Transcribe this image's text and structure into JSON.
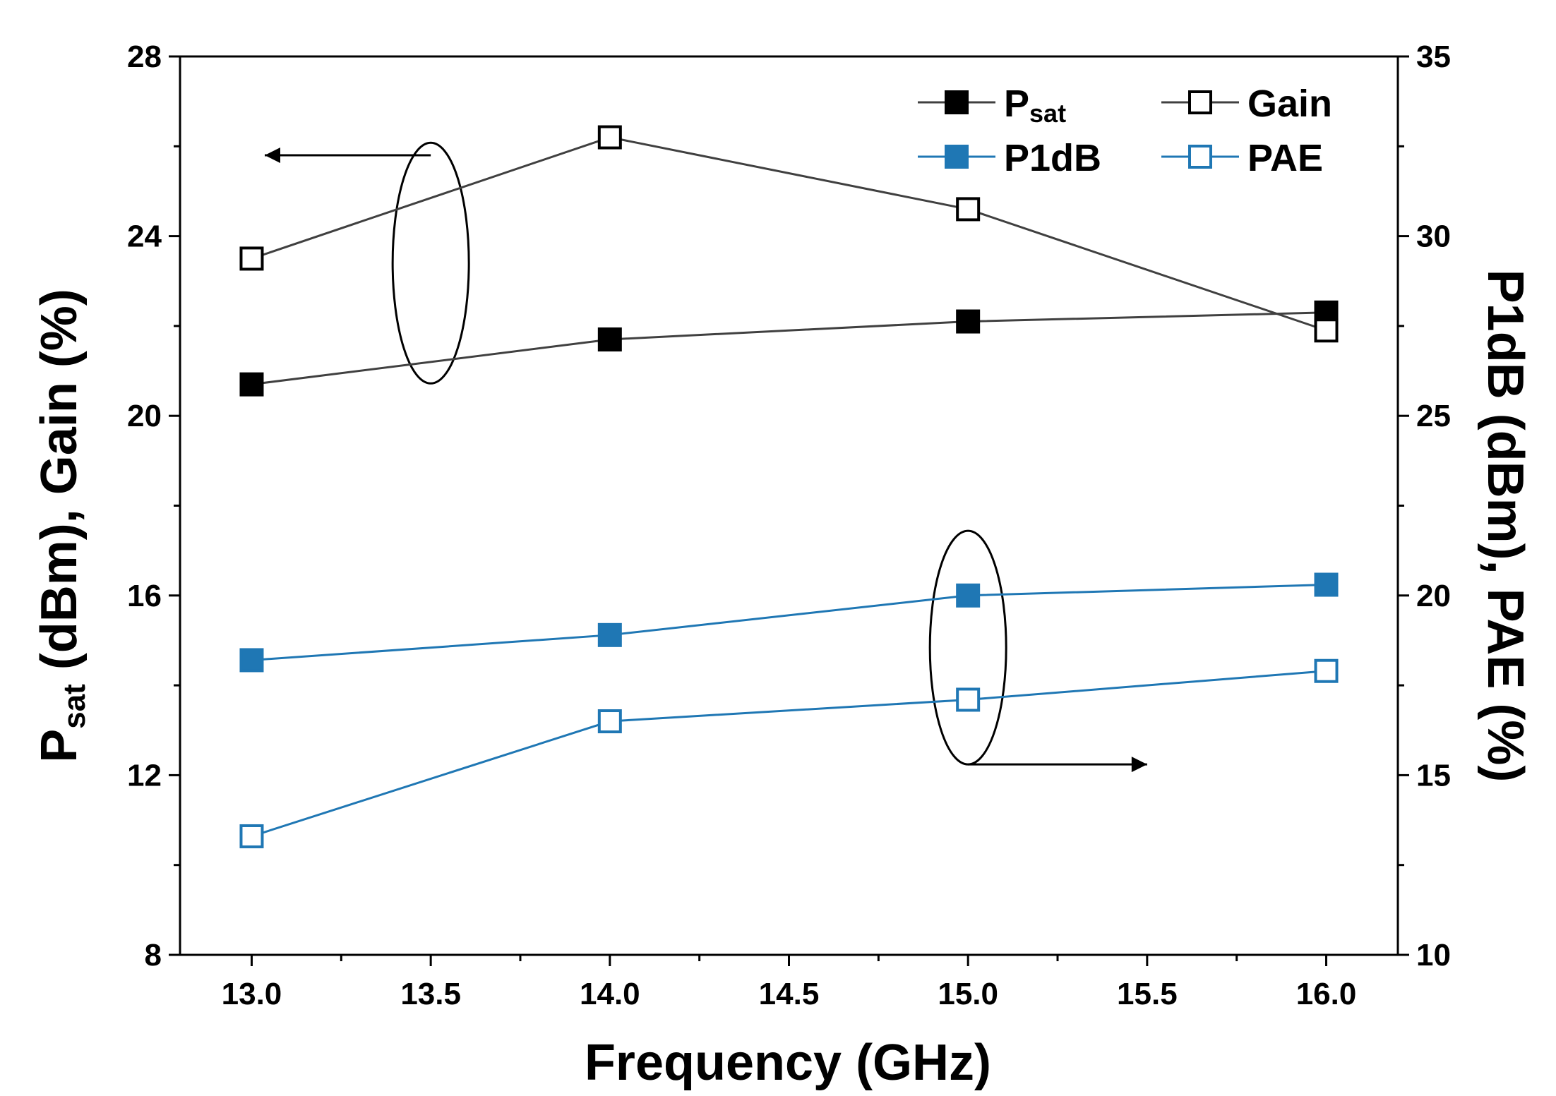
{
  "chart_data": {
    "type": "line",
    "x": [
      13.0,
      14.0,
      15.0,
      16.0
    ],
    "xlim": [
      12.8,
      16.2
    ],
    "x_ticks": [
      "13.0",
      "13.5",
      "14.0",
      "14.5",
      "15.0",
      "15.5",
      "16.0"
    ],
    "xlabel": "Frequency (GHz)",
    "ylim_left": [
      8,
      28
    ],
    "y_left_ticks": [
      "8",
      "12",
      "16",
      "20",
      "24",
      "28"
    ],
    "ylabel_left": {
      "main": "P",
      "sub": "sat",
      "rest": " (dBm), Gain (%)"
    },
    "ylim_right": [
      10,
      35
    ],
    "y_right_ticks": [
      "10",
      "15",
      "20",
      "25",
      "30",
      "35"
    ],
    "ylabel_right": "P1dB (dBm), PAE (%)",
    "series": [
      {
        "name": "Psat",
        "label_main": "P",
        "label_sub": "sat",
        "axis": "left",
        "marker": "filled-square",
        "color": "#404040",
        "values": [
          20.7,
          21.7,
          22.1,
          22.3
        ]
      },
      {
        "name": "Gain",
        "label_main": "Gain",
        "label_sub": "",
        "axis": "left",
        "marker": "open-square",
        "color": "#404040",
        "values": [
          23.5,
          26.2,
          24.6,
          21.9
        ]
      },
      {
        "name": "P1dB",
        "label_main": "P1dB",
        "label_sub": "",
        "axis": "right",
        "marker": "filled-square",
        "color": "#1f77b4",
        "values": [
          18.2,
          18.9,
          20.0,
          20.3
        ]
      },
      {
        "name": "PAE",
        "label_main": "PAE",
        "label_sub": "",
        "axis": "right",
        "marker": "open-square",
        "color": "#1f77b4",
        "values": [
          13.3,
          16.5,
          17.1,
          17.9
        ]
      }
    ],
    "annotations": [
      "ellipse around Psat/Gain at 13.5 GHz with arrow pointing to left axis",
      "ellipse around P1dB/PAE at 15.0 GHz with arrow pointing to right axis"
    ],
    "legend_position": "top-right",
    "grid": false
  }
}
